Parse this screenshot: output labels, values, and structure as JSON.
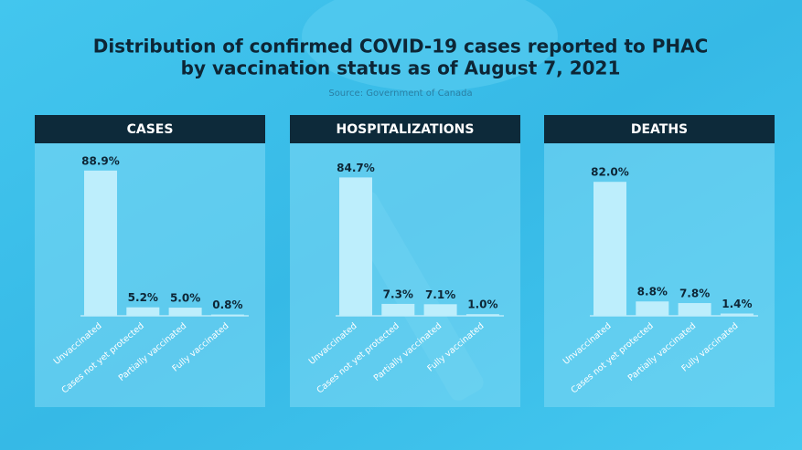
{
  "header": {
    "title": [
      "Distribution of confirmed COVID-19 cases reported to PHAC",
      "by vaccination status as of August 7, 2021"
    ],
    "source": "Source: Government of Canada"
  },
  "chart_data": [
    {
      "type": "bar",
      "title": "CASES",
      "categories": [
        "Unvaccinated",
        "Cases not yet protected",
        "Partially vaccinated",
        "Fully vaccinated"
      ],
      "values": [
        88.9,
        5.2,
        5.0,
        0.8
      ],
      "value_labels": [
        "88.9%",
        "5.2%",
        "5.0%",
        "0.8%"
      ],
      "color": "#bdeefc"
    },
    {
      "type": "bar",
      "title": "HOSPITALIZATIONS",
      "categories": [
        "Unvaccinated",
        "Cases not yet protected",
        "Partially vaccinated",
        "Fully vaccinated"
      ],
      "values": [
        84.7,
        7.3,
        7.1,
        1.0
      ],
      "value_labels": [
        "84.7%",
        "7.3%",
        "7.1%",
        "1.0%"
      ],
      "color": "#bdeefc"
    },
    {
      "type": "bar",
      "title": "DEATHS",
      "categories": [
        "Unvaccinated",
        "Cases not yet protected",
        "Partially vaccinated",
        "Fully vaccinated"
      ],
      "values": [
        82.0,
        8.8,
        7.8,
        1.4
      ],
      "value_labels": [
        "82.0%",
        "8.8%",
        "7.8%",
        "1.4%"
      ],
      "color": "#bdeefc"
    }
  ]
}
